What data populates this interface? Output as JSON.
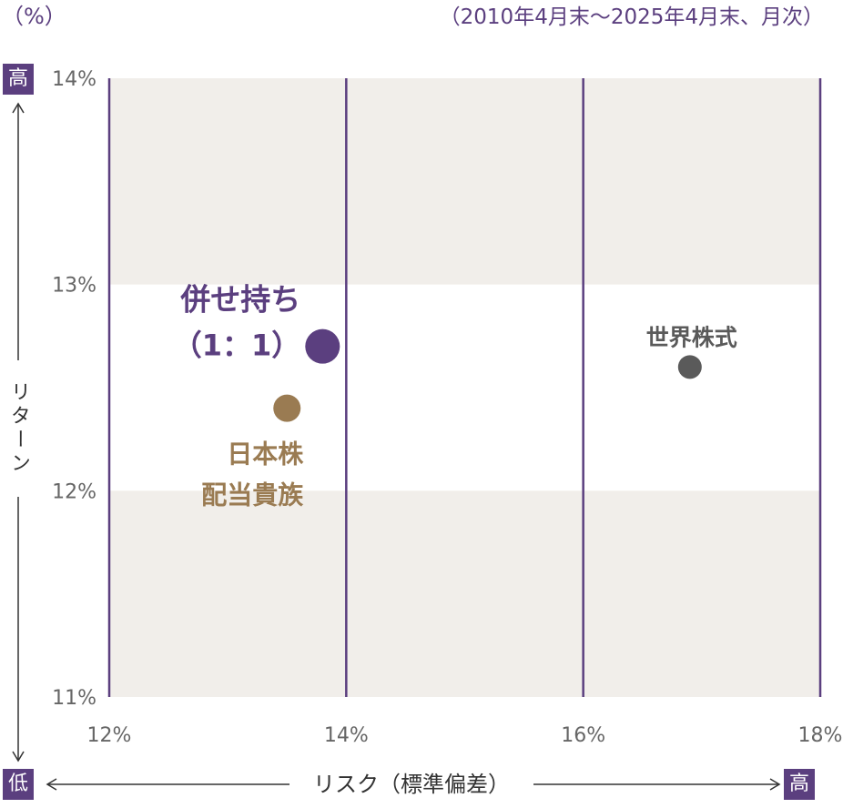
{
  "header": {
    "unit": "（%）",
    "period": "（2010年4月末～2025年4月末、月次）"
  },
  "axis": {
    "y_label": "リターン",
    "x_label": "リスク（標準偏差）",
    "y_high": "高",
    "y_low": "低",
    "x_high": "高"
  },
  "colors": {
    "frame": "#5b3f7f",
    "band": "#f1eeea",
    "blend": "#5b3f7f",
    "japan": "#9a7b52",
    "world": "#5a5a5a",
    "tick": "#666666"
  },
  "chart_data": {
    "type": "scatter",
    "xlim": [
      12,
      18
    ],
    "ylim": [
      11,
      14
    ],
    "x_ticks": [
      "12%",
      "14%",
      "16%",
      "18%"
    ],
    "y_ticks": [
      "11%",
      "12%",
      "13%",
      "14%"
    ],
    "grid": true,
    "points": [
      {
        "name": "併せ持ち",
        "sub": "（1：1）",
        "x": 13.8,
        "y": 12.7,
        "color": "#5b3f7f"
      },
      {
        "name": "日本株",
        "sub": "配当貴族",
        "x": 13.5,
        "y": 12.4,
        "color": "#9a7b52"
      },
      {
        "name": "世界株式",
        "sub": "",
        "x": 16.9,
        "y": 12.6,
        "color": "#5a5a5a"
      }
    ]
  }
}
